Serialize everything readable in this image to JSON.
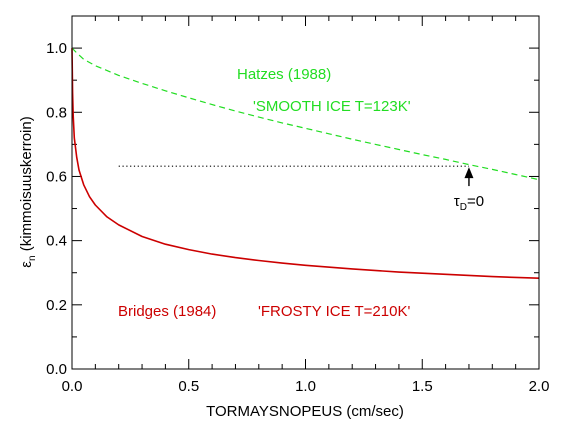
{
  "chart_data": {
    "type": "line",
    "xlabel": "TORMAYSNOPEUS (cm/sec)",
    "ylabel_main": "ε",
    "ylabel_sub": "n",
    "ylabel_rest": " (kimmoisuuskerroin)",
    "xlim": [
      0.0,
      2.0
    ],
    "ylim": [
      0.0,
      1.1
    ],
    "x_ticks": [
      "0.0",
      "0.5",
      "1.0",
      "1.5",
      "2.0"
    ],
    "y_ticks": [
      "0.0",
      "0.2",
      "0.4",
      "0.6",
      "0.8",
      "1.0"
    ],
    "grid": false,
    "series": [
      {
        "source": "Hatzes (1988)",
        "label": "'SMOOTH ICE  T=123K'",
        "color": "#22dd22",
        "style": "dashed",
        "x": [
          0.0,
          0.02,
          0.05,
          0.1,
          0.2,
          0.3,
          0.4,
          0.5,
          0.6,
          0.7,
          0.8,
          0.9,
          1.0,
          1.1,
          1.2,
          1.3,
          1.4,
          1.5,
          1.6,
          1.7,
          1.8,
          1.9,
          2.0
        ],
        "values": [
          1.0,
          0.985,
          0.965,
          0.945,
          0.915,
          0.89,
          0.867,
          0.845,
          0.824,
          0.804,
          0.785,
          0.767,
          0.75,
          0.733,
          0.716,
          0.7,
          0.684,
          0.668,
          0.653,
          0.637,
          0.622,
          0.606,
          0.59
        ]
      },
      {
        "source": "Bridges (1984)",
        "label": "'FROSTY ICE T=210K'",
        "color": "#cc0000",
        "style": "solid",
        "x": [
          0.0,
          0.0025,
          0.005,
          0.01,
          0.02,
          0.03,
          0.05,
          0.075,
          0.1,
          0.15,
          0.2,
          0.3,
          0.4,
          0.5,
          0.6,
          0.7,
          0.8,
          0.9,
          1.0,
          1.2,
          1.4,
          1.6,
          1.8,
          2.0
        ],
        "values": [
          1.0,
          0.86,
          0.79,
          0.72,
          0.66,
          0.62,
          0.574,
          0.537,
          0.511,
          0.474,
          0.449,
          0.413,
          0.389,
          0.372,
          0.358,
          0.347,
          0.338,
          0.33,
          0.323,
          0.312,
          0.302,
          0.295,
          0.288,
          0.283
        ]
      }
    ],
    "reference_line": {
      "y": 0.632,
      "x_start": 0.2,
      "x_end": 1.7,
      "style": "dotted",
      "color": "#000000"
    },
    "arrow_annotation": {
      "label_main": "τ",
      "label_sub": "D",
      "label_rest": "=0",
      "x": 1.7,
      "y_tip": 0.632,
      "y_tail": 0.57
    }
  }
}
